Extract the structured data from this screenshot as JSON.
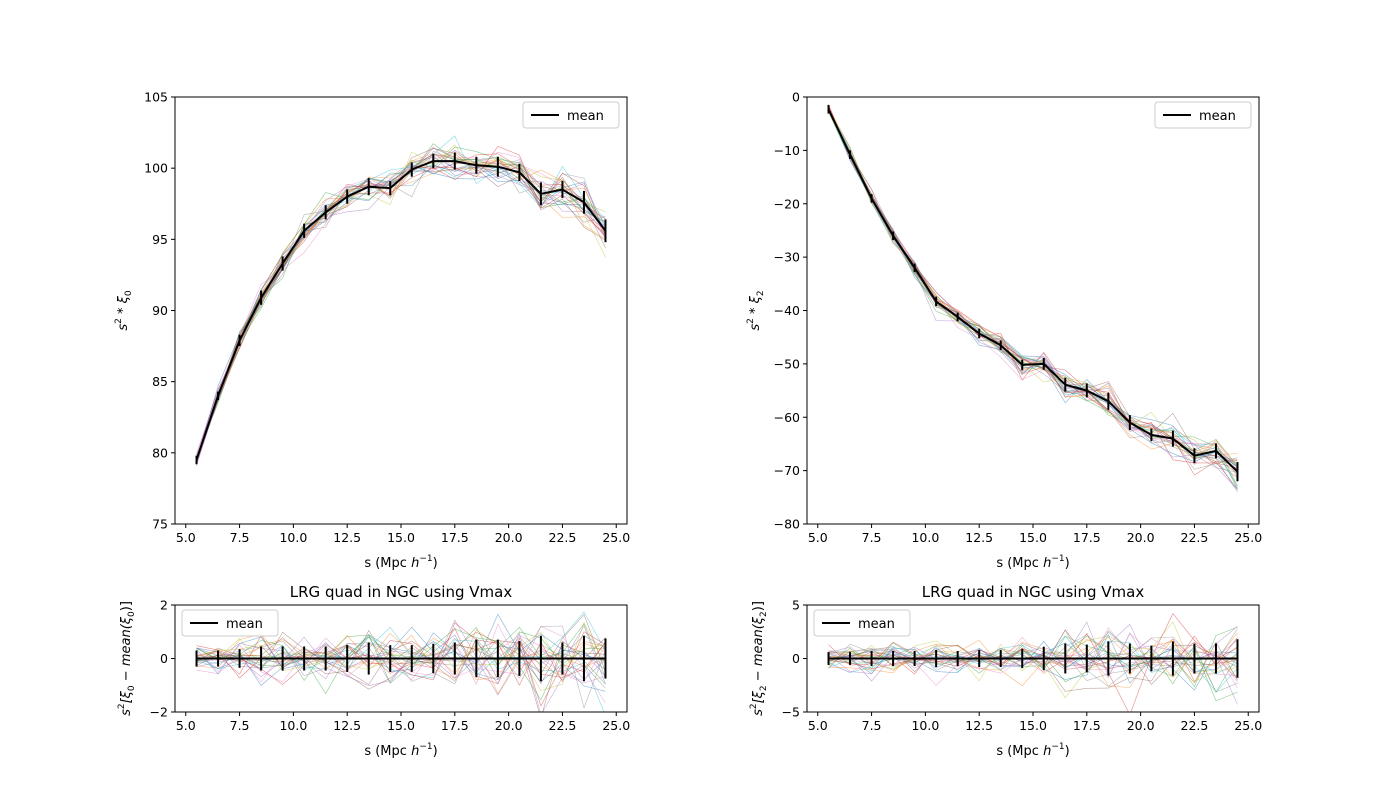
{
  "chart_data": [
    {
      "type": "line",
      "xlabel_prefix": "s (Mpc ",
      "xlabel_unit": "h",
      "xlabel_exp": "−1",
      "xlabel_suffix": ")",
      "ylabel_base": "s",
      "ylabel_exp": "2",
      "ylabel_rest": " * ξ",
      "ylabel_sub": "0",
      "title": "",
      "xlim": [
        4.5,
        25.5
      ],
      "ylim": [
        75,
        105
      ],
      "x_ticks": [
        "5.0",
        "7.5",
        "10.0",
        "12.5",
        "15.0",
        "17.5",
        "20.0",
        "22.5",
        "25.0"
      ],
      "y_ticks": [
        "75",
        "80",
        "85",
        "90",
        "95",
        "100",
        "105"
      ],
      "legend": {
        "entries": [
          "mean"
        ],
        "position": "upper right"
      },
      "x": [
        5.5,
        6.5,
        7.5,
        8.5,
        9.5,
        10.5,
        11.5,
        12.5,
        13.5,
        14.5,
        15.5,
        16.5,
        17.5,
        18.5,
        19.5,
        20.5,
        21.5,
        22.5,
        23.5,
        24.5
      ],
      "series": [
        {
          "name": "mean",
          "values": [
            79.5,
            84.0,
            87.9,
            90.9,
            93.3,
            95.6,
            96.9,
            98.0,
            98.7,
            98.6,
            99.9,
            100.5,
            100.5,
            100.2,
            100.1,
            99.7,
            98.2,
            98.5,
            97.6,
            95.6
          ],
          "errors": [
            0.3,
            0.3,
            0.4,
            0.5,
            0.5,
            0.5,
            0.5,
            0.5,
            0.6,
            0.5,
            0.5,
            0.5,
            0.6,
            0.6,
            0.7,
            0.6,
            0.8,
            0.6,
            0.8,
            0.8
          ]
        }
      ],
      "n_mocks": 28,
      "mock_scatter": [
        0.25,
        0.3,
        0.35,
        0.4,
        0.45,
        0.45,
        0.5,
        0.5,
        0.55,
        0.55,
        0.55,
        0.6,
        0.65,
        0.65,
        0.7,
        0.7,
        0.8,
        0.75,
        0.8,
        0.8
      ]
    },
    {
      "type": "line",
      "xlabel_prefix": "s (Mpc ",
      "xlabel_unit": "h",
      "xlabel_exp": "−1",
      "xlabel_suffix": ")",
      "ylabel_base": "s",
      "ylabel_exp": "2",
      "ylabel_rest": " * ξ",
      "ylabel_sub": "2",
      "title": "",
      "xlim": [
        4.5,
        25.5
      ],
      "ylim": [
        -80,
        0
      ],
      "x_ticks": [
        "5.0",
        "7.5",
        "10.0",
        "12.5",
        "15.0",
        "17.5",
        "20.0",
        "22.5",
        "25.0"
      ],
      "y_ticks": [
        "−80",
        "−70",
        "−60",
        "−50",
        "−40",
        "−30",
        "−20",
        "−10",
        "0"
      ],
      "legend": {
        "entries": [
          "mean"
        ],
        "position": "upper right"
      },
      "x": [
        5.5,
        6.5,
        7.5,
        8.5,
        9.5,
        10.5,
        11.5,
        12.5,
        13.5,
        14.5,
        15.5,
        16.5,
        17.5,
        18.5,
        19.5,
        20.5,
        21.5,
        22.5,
        23.5,
        24.5
      ],
      "series": [
        {
          "name": "mean",
          "values": [
            -2.3,
            -10.8,
            -19.0,
            -26.0,
            -32.0,
            -38.3,
            -41.2,
            -44.3,
            -46.5,
            -50.2,
            -50.0,
            -53.9,
            -55.0,
            -57.0,
            -61.0,
            -63.3,
            -64.0,
            -67.2,
            -66.3,
            -70.2
          ],
          "errors": [
            0.8,
            0.8,
            0.8,
            0.8,
            0.8,
            0.9,
            0.8,
            0.9,
            0.9,
            1.0,
            1.1,
            1.3,
            1.3,
            1.6,
            1.4,
            1.2,
            1.5,
            1.4,
            1.4,
            1.8
          ]
        }
      ],
      "n_mocks": 28,
      "mock_scatter": [
        0.5,
        0.6,
        0.7,
        0.8,
        0.8,
        0.9,
        0.9,
        1.0,
        1.0,
        1.1,
        1.2,
        1.3,
        1.3,
        1.5,
        1.4,
        1.3,
        1.5,
        1.5,
        1.5,
        1.8
      ]
    },
    {
      "type": "line",
      "title": "LRG quad in NGC using Vmax",
      "xlabel_prefix": "s (Mpc ",
      "xlabel_unit": "h",
      "xlabel_exp": "−1",
      "xlabel_suffix": ")",
      "ylabel_base": "s",
      "ylabel_exp": "2",
      "ylabel_rest": "[ξ",
      "ylabel_sub": "0",
      "ylabel_tail": " − mean(ξ",
      "ylabel_tail_sub": "0",
      "ylabel_end": ")]",
      "xlim": [
        4.5,
        25.5
      ],
      "ylim": [
        -2,
        2
      ],
      "x_ticks": [
        "5.0",
        "7.5",
        "10.0",
        "12.5",
        "15.0",
        "17.5",
        "20.0",
        "22.5",
        "25.0"
      ],
      "y_ticks": [
        "−2",
        "0",
        "2"
      ],
      "legend": {
        "entries": [
          "mean"
        ],
        "position": "upper left"
      },
      "x": [
        5.5,
        6.5,
        7.5,
        8.5,
        9.5,
        10.5,
        11.5,
        12.5,
        13.5,
        14.5,
        15.5,
        16.5,
        17.5,
        18.5,
        19.5,
        20.5,
        21.5,
        22.5,
        23.5,
        24.5
      ],
      "series": [
        {
          "name": "mean",
          "values": [
            0,
            0,
            0,
            0,
            0,
            0,
            0,
            0,
            0,
            0,
            0,
            0,
            0,
            0,
            0,
            0,
            0,
            0,
            0,
            0
          ],
          "errors": [
            0.3,
            0.3,
            0.35,
            0.45,
            0.45,
            0.45,
            0.45,
            0.5,
            0.6,
            0.5,
            0.5,
            0.55,
            0.6,
            0.7,
            0.7,
            0.65,
            0.85,
            0.6,
            0.85,
            0.75
          ]
        }
      ],
      "n_mocks": 28,
      "mock_scatter": [
        0.3,
        0.3,
        0.35,
        0.45,
        0.45,
        0.45,
        0.45,
        0.5,
        0.6,
        0.5,
        0.5,
        0.55,
        0.6,
        0.7,
        0.7,
        0.65,
        0.85,
        0.6,
        0.85,
        0.75
      ]
    },
    {
      "type": "line",
      "title": "LRG quad in NGC using Vmax",
      "xlabel_prefix": "s (Mpc ",
      "xlabel_unit": "h",
      "xlabel_exp": "−1",
      "xlabel_suffix": ")",
      "ylabel_base": "s",
      "ylabel_exp": "2",
      "ylabel_rest": "[ξ",
      "ylabel_sub": "2",
      "ylabel_tail": " − mean(ξ",
      "ylabel_tail_sub": "2",
      "ylabel_end": ")]",
      "xlim": [
        4.5,
        25.5
      ],
      "ylim": [
        -5,
        5
      ],
      "x_ticks": [
        "5.0",
        "7.5",
        "10.0",
        "12.5",
        "15.0",
        "17.5",
        "20.0",
        "22.5",
        "25.0"
      ],
      "y_ticks": [
        "−5",
        "0",
        "5"
      ],
      "legend": {
        "entries": [
          "mean"
        ],
        "position": "upper left"
      },
      "x": [
        5.5,
        6.5,
        7.5,
        8.5,
        9.5,
        10.5,
        11.5,
        12.5,
        13.5,
        14.5,
        15.5,
        16.5,
        17.5,
        18.5,
        19.5,
        20.5,
        21.5,
        22.5,
        23.5,
        24.5
      ],
      "series": [
        {
          "name": "mean",
          "values": [
            0,
            0,
            0,
            0,
            0,
            0,
            0,
            0,
            0,
            0,
            0,
            0,
            0,
            0,
            0,
            0,
            0,
            0,
            0,
            0
          ],
          "errors": [
            0.6,
            0.6,
            0.7,
            0.7,
            0.7,
            0.8,
            0.7,
            0.8,
            0.8,
            0.9,
            1.1,
            1.4,
            1.3,
            1.6,
            1.4,
            1.2,
            1.6,
            1.4,
            1.4,
            1.8
          ]
        }
      ],
      "n_mocks": 28,
      "mock_scatter": [
        0.6,
        0.6,
        0.7,
        0.7,
        0.7,
        0.8,
        0.7,
        0.8,
        0.8,
        0.9,
        1.1,
        1.4,
        1.3,
        1.6,
        1.4,
        1.2,
        1.6,
        1.4,
        1.4,
        1.8
      ]
    }
  ],
  "colors": {
    "mean_line": "#000000",
    "mock_palette": [
      "#1f77b4",
      "#ff7f0e",
      "#2ca02c",
      "#d62728",
      "#9467bd",
      "#8c564b",
      "#e377c2",
      "#7f7f7f",
      "#bcbd22",
      "#17becf"
    ]
  }
}
